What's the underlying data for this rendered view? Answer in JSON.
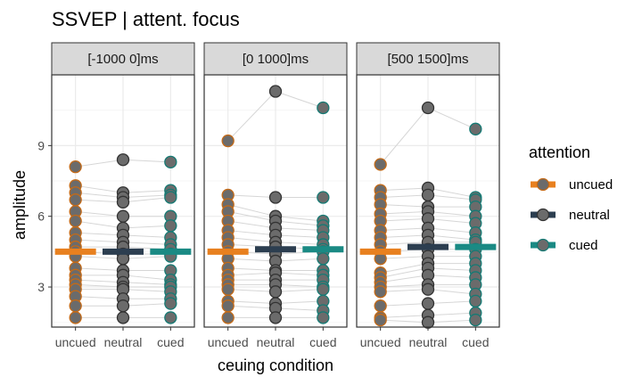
{
  "chart_data": {
    "type": "scatter",
    "title": "SSVEP | attent. focus",
    "xlabel": "ceuing condition",
    "ylabel": "amplitude",
    "categories": [
      "uncued",
      "neutral",
      "cued"
    ],
    "ylim": [
      1.3,
      12.0
    ],
    "yticks": [
      3,
      6,
      9
    ],
    "grid": true,
    "legend": {
      "title": "attention",
      "position": "right",
      "entries": [
        {
          "label": "uncued",
          "color": "#E8801F"
        },
        {
          "label": "neutral",
          "color": "#2C3E50"
        },
        {
          "label": "cued",
          "color": "#1A8A84"
        }
      ]
    },
    "colors": {
      "uncued_outline": "#C46A17",
      "neutral_outline": "#333333",
      "cued_outline": "#157A74",
      "point_fill": "#6B6B6B",
      "line": "#D6D6D6",
      "strip_bg": "#D9D9D9",
      "panel_border": "#333333",
      "grid_major": "#EBEBEB",
      "grid_minor": "#F5F5F5"
    },
    "panels": [
      {
        "label": "[-1000 0]ms",
        "means": [
          4.5,
          4.5,
          4.5
        ],
        "subjects": [
          [
            8.1,
            8.4,
            8.3
          ],
          [
            7.3,
            7.0,
            7.1
          ],
          [
            7.0,
            6.8,
            6.9
          ],
          [
            6.7,
            6.6,
            6.8
          ],
          [
            6.2,
            6.0,
            6.0
          ],
          [
            5.8,
            5.5,
            5.6
          ],
          [
            5.3,
            5.2,
            5.1
          ],
          [
            5.0,
            4.9,
            4.8
          ],
          [
            4.7,
            4.7,
            4.6
          ],
          [
            4.5,
            4.4,
            4.4
          ],
          [
            4.3,
            4.2,
            4.3
          ],
          [
            3.8,
            3.7,
            3.7
          ],
          [
            3.5,
            3.5,
            3.3
          ],
          [
            3.3,
            3.2,
            3.1
          ],
          [
            3.1,
            3.0,
            3.0
          ],
          [
            2.9,
            2.9,
            2.8
          ],
          [
            2.6,
            2.5,
            2.5
          ],
          [
            2.2,
            2.2,
            2.3
          ],
          [
            1.7,
            1.7,
            1.7
          ]
        ]
      },
      {
        "label": "[0 1000]ms",
        "means": [
          4.5,
          4.6,
          4.6
        ],
        "subjects": [
          [
            9.2,
            11.3,
            10.6
          ],
          [
            6.9,
            6.8,
            6.8
          ],
          [
            6.5,
            6.0,
            5.8
          ],
          [
            6.2,
            5.8,
            5.6
          ],
          [
            5.8,
            5.5,
            5.4
          ],
          [
            5.4,
            5.2,
            5.1
          ],
          [
            5.1,
            4.9,
            4.8
          ],
          [
            4.8,
            4.7,
            4.6
          ],
          [
            4.5,
            4.4,
            4.5
          ],
          [
            4.2,
            4.1,
            4.2
          ],
          [
            3.8,
            3.7,
            3.7
          ],
          [
            3.5,
            3.6,
            3.5
          ],
          [
            3.3,
            3.3,
            3.3
          ],
          [
            3.1,
            3.1,
            3.0
          ],
          [
            2.9,
            2.8,
            2.9
          ],
          [
            2.4,
            2.3,
            2.4
          ],
          [
            2.2,
            2.1,
            2.0
          ],
          [
            1.7,
            1.7,
            1.7
          ]
        ]
      },
      {
        "label": "[500 1500]ms",
        "means": [
          4.5,
          4.7,
          4.7
        ],
        "subjects": [
          [
            8.2,
            10.6,
            9.7
          ],
          [
            7.1,
            7.2,
            6.8
          ],
          [
            6.8,
            6.9,
            6.7
          ],
          [
            6.5,
            6.4,
            6.4
          ],
          [
            6.1,
            6.2,
            6.0
          ],
          [
            5.8,
            5.9,
            5.7
          ],
          [
            5.4,
            5.5,
            5.3
          ],
          [
            5.1,
            5.2,
            5.0
          ],
          [
            4.8,
            4.9,
            4.9
          ],
          [
            4.5,
            4.6,
            4.6
          ],
          [
            4.2,
            4.3,
            4.3
          ],
          [
            3.6,
            4.0,
            4.0
          ],
          [
            3.4,
            3.8,
            3.7
          ],
          [
            3.2,
            3.5,
            3.4
          ],
          [
            3.0,
            3.1,
            3.1
          ],
          [
            2.8,
            2.9,
            2.7
          ],
          [
            2.2,
            2.3,
            2.4
          ],
          [
            1.7,
            1.8,
            1.9
          ],
          [
            1.6,
            1.5,
            1.6
          ]
        ]
      }
    ]
  }
}
